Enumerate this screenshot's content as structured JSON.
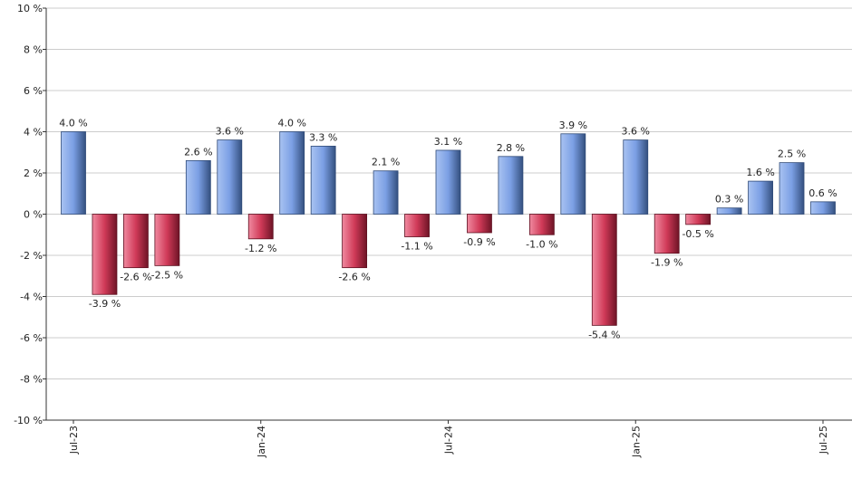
{
  "chart_data": {
    "type": "bar",
    "title": "",
    "xlabel": "",
    "ylabel": "",
    "ylim": [
      -10,
      10
    ],
    "ytick_step": 2,
    "y_unit": "%",
    "grid": true,
    "values": [
      4.0,
      -3.9,
      -2.6,
      -2.5,
      2.6,
      3.6,
      -1.2,
      4.0,
      3.3,
      -2.6,
      2.1,
      -1.1,
      3.1,
      -0.9,
      2.8,
      -1.0,
      3.9,
      -5.4,
      3.6,
      -1.9,
      -0.5,
      0.3,
      1.6,
      2.5,
      0.6
    ],
    "data_labels": [
      "4.0 %",
      "-3.9 %",
      "-2.6 %",
      "-2.5 %",
      "2.6 %",
      "3.6 %",
      "-1.2 %",
      "4.0 %",
      "3.3 %",
      "-2.6 %",
      "2.1 %",
      "-1.1 %",
      "3.1 %",
      "-0.9 %",
      "2.8 %",
      "-1.0 %",
      "3.9 %",
      "-5.4 %",
      "3.6 %",
      "-1.9 %",
      "-0.5 %",
      "0.3 %",
      "1.6 %",
      "2.5 %",
      "0.6 %"
    ],
    "y_tick_labels": [
      "10 %",
      "8 %",
      "6 %",
      "4 %",
      "2 %",
      "0 %",
      "-2 %",
      "-4 %",
      "-6 %",
      "-8 %",
      "-10 %"
    ],
    "x_tick_labels": [
      {
        "label": "Jul-23",
        "index": 0
      },
      {
        "label": "Jan-24",
        "index": 6
      },
      {
        "label": "Jul-24",
        "index": 12
      },
      {
        "label": "Jan-25",
        "index": 18
      },
      {
        "label": "Jul-25",
        "index": 24
      }
    ],
    "colors": {
      "positive": "#6b8fd6",
      "negative": "#c0334d",
      "grid": "#cccccc",
      "axis": "#333333"
    }
  }
}
